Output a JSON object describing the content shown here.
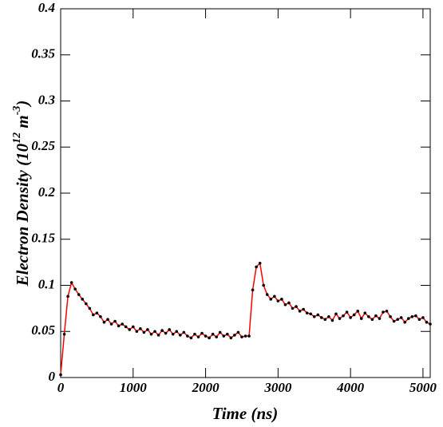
{
  "chart_data": {
    "type": "line",
    "xlabel": "Time (ns)",
    "ylabel_parts": [
      "Electron Density (10",
      "12",
      " m",
      "-3",
      ")"
    ],
    "x": [
      0,
      50,
      100,
      150,
      200,
      250,
      300,
      350,
      400,
      450,
      500,
      550,
      600,
      650,
      700,
      750,
      800,
      850,
      900,
      950,
      1000,
      1050,
      1100,
      1150,
      1200,
      1250,
      1300,
      1350,
      1400,
      1450,
      1500,
      1550,
      1600,
      1650,
      1700,
      1750,
      1800,
      1850,
      1900,
      1950,
      2000,
      2050,
      2100,
      2150,
      2200,
      2250,
      2300,
      2350,
      2400,
      2450,
      2500,
      2550,
      2600,
      2650,
      2700,
      2750,
      2800,
      2850,
      2900,
      2950,
      3000,
      3050,
      3100,
      3150,
      3200,
      3250,
      3300,
      3350,
      3400,
      3450,
      3500,
      3550,
      3600,
      3650,
      3700,
      3750,
      3800,
      3850,
      3900,
      3950,
      4000,
      4050,
      4100,
      4150,
      4200,
      4250,
      4300,
      4350,
      4400,
      4450,
      4500,
      4550,
      4600,
      4650,
      4700,
      4750,
      4800,
      4850,
      4900,
      4950,
      5000,
      5050,
      5100
    ],
    "series": [
      {
        "color": "#ff0000",
        "marker_color": "#000000",
        "values": [
          0.003,
          0.047,
          0.088,
          0.103,
          0.096,
          0.09,
          0.085,
          0.08,
          0.075,
          0.068,
          0.07,
          0.066,
          0.06,
          0.063,
          0.058,
          0.061,
          0.056,
          0.058,
          0.055,
          0.052,
          0.055,
          0.05,
          0.053,
          0.049,
          0.052,
          0.047,
          0.05,
          0.046,
          0.051,
          0.048,
          0.052,
          0.047,
          0.05,
          0.046,
          0.049,
          0.045,
          0.043,
          0.047,
          0.044,
          0.048,
          0.045,
          0.043,
          0.047,
          0.044,
          0.049,
          0.045,
          0.047,
          0.043,
          0.046,
          0.049,
          0.044,
          0.045,
          0.045,
          0.095,
          0.12,
          0.124,
          0.1,
          0.09,
          0.085,
          0.088,
          0.083,
          0.085,
          0.079,
          0.081,
          0.075,
          0.077,
          0.072,
          0.074,
          0.07,
          0.069,
          0.066,
          0.068,
          0.065,
          0.063,
          0.066,
          0.062,
          0.069,
          0.064,
          0.067,
          0.071,
          0.065,
          0.068,
          0.072,
          0.064,
          0.07,
          0.066,
          0.063,
          0.067,
          0.064,
          0.071,
          0.072,
          0.066,
          0.061,
          0.063,
          0.065,
          0.06,
          0.064,
          0.066,
          0.067,
          0.063,
          0.065,
          0.06,
          0.058
        ]
      }
    ],
    "xlim": [
      0,
      5100
    ],
    "ylim": [
      0,
      0.4
    ],
    "xticks": [
      0,
      1000,
      2000,
      3000,
      4000,
      5000
    ],
    "yticks": [
      0,
      0.05,
      0.1,
      0.15,
      0.2,
      0.25,
      0.3,
      0.35,
      0.4
    ]
  }
}
